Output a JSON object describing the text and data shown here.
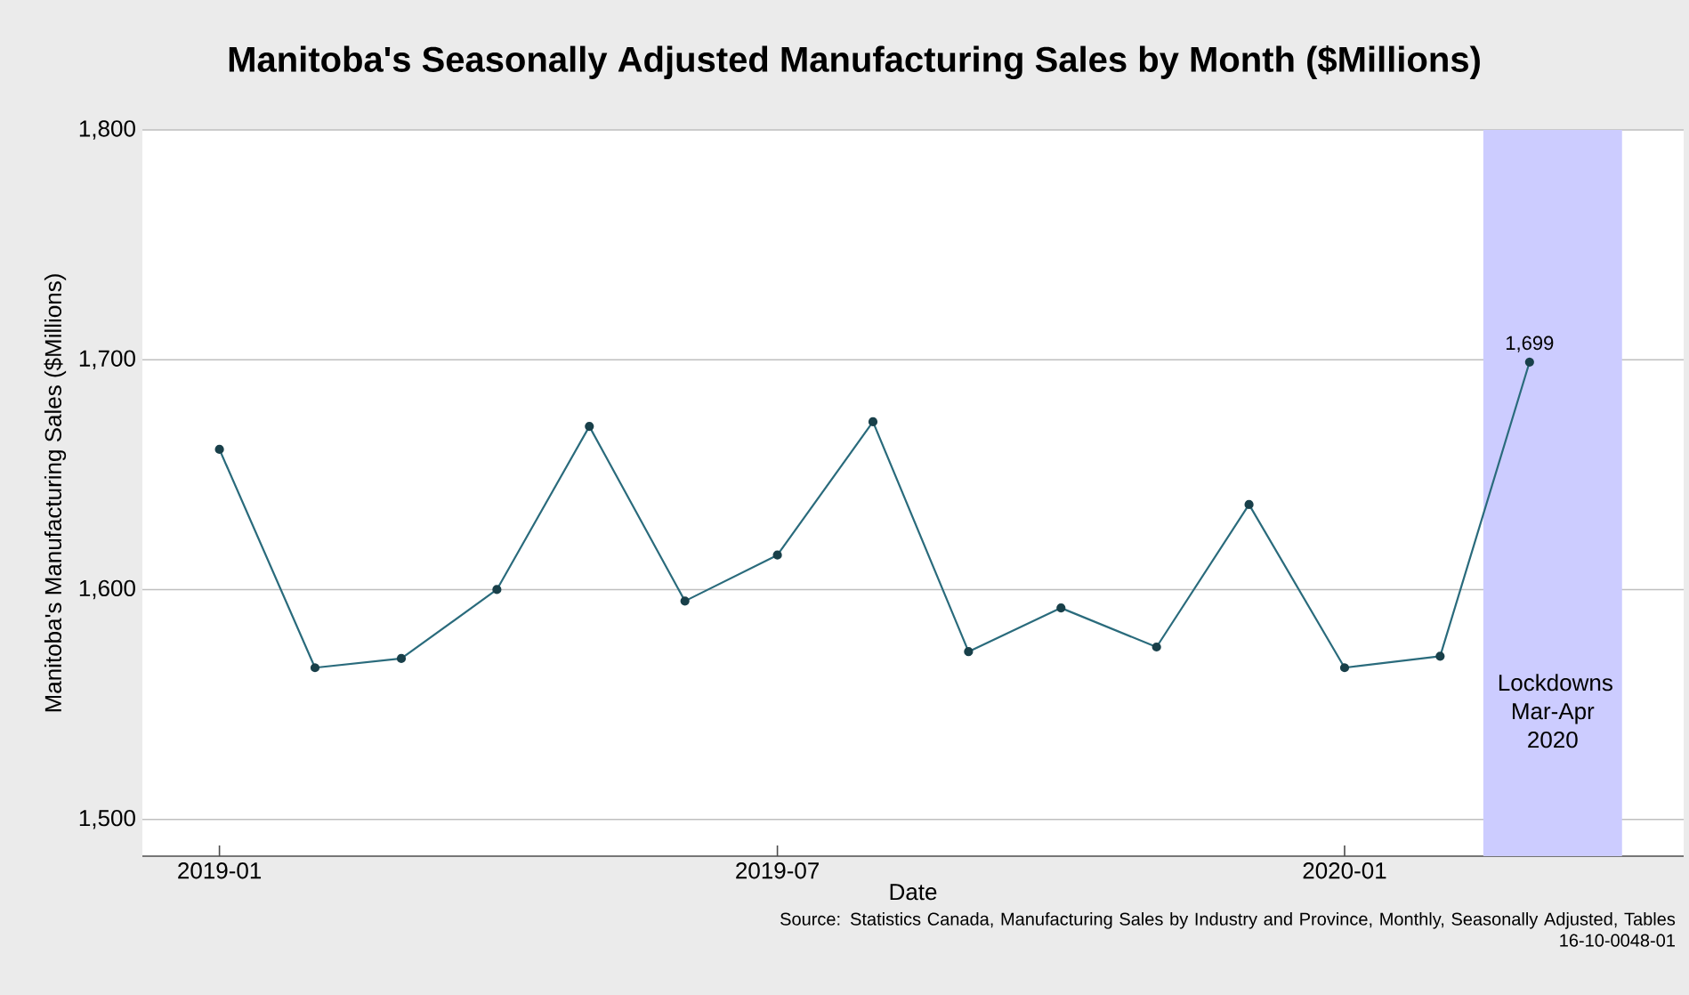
{
  "chart_data": {
    "type": "line",
    "title": "Manitoba's Seasonally Adjusted Manufacturing Sales by Month ($Millions)",
    "xlabel": "Date",
    "ylabel": "Manitoba's Manufacturing Sales ($Millions)",
    "x": [
      "2019-01",
      "2019-02",
      "2019-03",
      "2019-04",
      "2019-05",
      "2019-06",
      "2019-07",
      "2019-08",
      "2019-09",
      "2019-10",
      "2019-11",
      "2019-12",
      "2020-01",
      "2020-02",
      "2020-03"
    ],
    "series": [
      {
        "color": "#2a6b7c",
        "values": [
          1661,
          1566,
          1570,
          1600,
          1671,
          1595,
          1615,
          1673,
          1573,
          1592,
          1575,
          1637,
          1566,
          1571,
          1699
        ],
        "value_labels": [
          null,
          null,
          null,
          null,
          null,
          null,
          null,
          null,
          null,
          null,
          null,
          null,
          null,
          null,
          "1,699"
        ]
      }
    ],
    "xlim": [
      "2018-12-07",
      "2020-04-20"
    ],
    "xticks": [
      {
        "value": "2019-01",
        "label": "2019-01"
      },
      {
        "value": "2019-07",
        "label": "2019-07"
      },
      {
        "value": "2020-01",
        "label": "2020-01"
      }
    ],
    "ylim": [
      1484,
      1800
    ],
    "yticks": [
      {
        "value": 1500,
        "label": "1,500"
      },
      {
        "value": 1600,
        "label": "1,600"
      },
      {
        "value": 1700,
        "label": "1,700"
      },
      {
        "value": 1800,
        "label": "1,800"
      }
    ],
    "grid": "y",
    "marker": "circle",
    "line_style": "solid",
    "bands": [
      {
        "axis": "x",
        "from": "2020-02-15",
        "to": "2020-03-31",
        "label": "Lockdowns Mar-Apr 2020",
        "color": "#ccccff"
      }
    ],
    "annotations": [
      "Source: Statistics Canada, Manufacturing Sales by Industry and Province, Monthly, Seasonally Adjusted, Tables 16-10-0048-01"
    ]
  }
}
